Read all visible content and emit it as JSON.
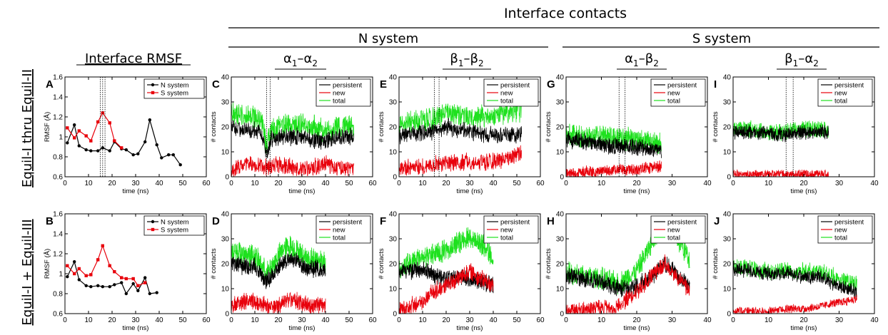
{
  "header": {
    "top_title": "Interface contacts",
    "n_system": "N system",
    "s_system": "S system",
    "rmsf_title": "Interface RMSF",
    "col_c": {
      "a": "α",
      "s1": "1",
      "dash": "–",
      "b": "α",
      "s2": "2"
    },
    "col_e": {
      "a": "β",
      "s1": "1",
      "dash": "–",
      "b": "β",
      "s2": "2"
    },
    "col_g": {
      "a": "α",
      "s1": "1",
      "dash": "–",
      "b": "β",
      "s2": "2"
    },
    "col_i": {
      "a": "β",
      "s1": "1",
      "dash": "–",
      "b": "α",
      "s2": "2"
    },
    "row1": "Equil-I thru Equil-II",
    "row2": "Equil-I + Equil-III"
  },
  "colors": {
    "black": "#000000",
    "red": "#e8000b",
    "green": "#1ee11e"
  },
  "chart_data": [
    {
      "id": "A",
      "type": "line",
      "xlabel": "time (ns)",
      "ylabel": "RMSF (Å)",
      "xlim": [
        0,
        60
      ],
      "ylim": [
        0.6,
        1.6
      ],
      "xticks": [
        0,
        10,
        20,
        30,
        40,
        50,
        60
      ],
      "yticks": [
        0.6,
        0.8,
        1.0,
        1.2,
        1.4,
        1.6
      ],
      "vlines": [
        15,
        16,
        17
      ],
      "legend": "top-right",
      "series": [
        {
          "name": "N system",
          "color": "#000000",
          "x": [
            1,
            4,
            6,
            9,
            11,
            14,
            16,
            19,
            21,
            24,
            26,
            29,
            31,
            34,
            36,
            39,
            41,
            44,
            46,
            49
          ],
          "y": [
            0.94,
            1.12,
            0.91,
            0.87,
            0.86,
            0.86,
            0.89,
            0.86,
            0.95,
            0.88,
            0.87,
            0.82,
            0.83,
            0.95,
            1.17,
            0.92,
            0.79,
            0.82,
            0.82,
            0.72
          ]
        },
        {
          "name": "S system",
          "color": "#e8000b",
          "x": [
            1,
            4,
            6,
            9,
            11,
            14,
            16,
            19,
            21,
            24
          ],
          "y": [
            1.09,
            0.99,
            1.06,
            1.01,
            0.96,
            1.15,
            1.24,
            1.14,
            0.96,
            0.89
          ]
        }
      ]
    },
    {
      "id": "B",
      "type": "line",
      "xlabel": "time (ns)",
      "ylabel": "RMSF (Å)",
      "xlim": [
        0,
        60
      ],
      "ylim": [
        0.6,
        1.6
      ],
      "xticks": [
        0,
        10,
        20,
        30,
        40,
        50,
        60
      ],
      "yticks": [
        0.6,
        0.8,
        1.0,
        1.2,
        1.4,
        1.6
      ],
      "vlines": [],
      "legend": "top-right",
      "series": [
        {
          "name": "N system",
          "color": "#000000",
          "x": [
            1,
            4,
            6,
            9,
            11,
            14,
            16,
            19,
            21,
            24,
            26,
            29,
            31,
            34,
            36,
            39
          ],
          "y": [
            0.97,
            1.12,
            0.94,
            0.88,
            0.87,
            0.88,
            0.87,
            0.87,
            0.89,
            0.91,
            0.8,
            0.9,
            0.83,
            0.96,
            0.8,
            0.81
          ]
        },
        {
          "name": "S system",
          "color": "#e8000b",
          "x": [
            1,
            4,
            6,
            9,
            11,
            14,
            16,
            19,
            21,
            24,
            26,
            29,
            31,
            34
          ],
          "y": [
            1.08,
            1.0,
            1.05,
            0.98,
            0.99,
            1.14,
            1.28,
            1.08,
            1.02,
            0.96,
            0.95,
            0.95,
            0.88,
            0.91
          ]
        }
      ]
    },
    {
      "id": "C",
      "type": "line",
      "xlabel": "time (ns)",
      "ylabel": "# contacts",
      "xlim": [
        0,
        60
      ],
      "ylim": [
        0,
        40
      ],
      "xticks": [
        0,
        10,
        20,
        30,
        40,
        50,
        60
      ],
      "yticks": [
        0,
        10,
        20,
        30,
        40
      ],
      "vlines": [
        15,
        16.5
      ],
      "legend": "top-right",
      "t_end": 52,
      "series": [
        {
          "name": "persistent",
          "color": "#000000",
          "x": [
            0,
            5,
            10,
            13,
            15,
            17,
            20,
            25,
            30,
            35,
            40,
            45,
            50,
            52
          ],
          "y": [
            20,
            19,
            19,
            17,
            9,
            15,
            16,
            16,
            16,
            15,
            14,
            16,
            16,
            16
          ],
          "noise": 3
        },
        {
          "name": "new",
          "color": "#e8000b",
          "x": [
            0,
            5,
            10,
            15,
            20,
            25,
            30,
            35,
            40,
            45,
            50,
            52
          ],
          "y": [
            2,
            5,
            5,
            4,
            5,
            4,
            3,
            4,
            5,
            4,
            4,
            3
          ],
          "noise": 3
        },
        {
          "name": "total",
          "color": "#1ee11e",
          "x": [
            0,
            5,
            10,
            13,
            15,
            17,
            20,
            25,
            30,
            35,
            40,
            45,
            50,
            52
          ],
          "y": [
            25,
            25,
            24,
            22,
            12,
            18,
            20,
            21,
            21,
            20,
            18,
            20,
            20,
            19
          ],
          "noise": 4
        }
      ]
    },
    {
      "id": "D",
      "type": "line",
      "xlabel": "time (ns)",
      "ylabel": "# contacts",
      "xlim": [
        0,
        60
      ],
      "ylim": [
        0,
        40
      ],
      "xticks": [
        0,
        10,
        20,
        30,
        40,
        50,
        60
      ],
      "yticks": [
        0,
        10,
        20,
        30,
        40
      ],
      "vlines": [],
      "legend": "top-right",
      "t_end": 40,
      "series": [
        {
          "name": "persistent",
          "color": "#000000",
          "x": [
            0,
            5,
            10,
            13,
            15,
            18,
            22,
            25,
            28,
            32,
            36,
            40
          ],
          "y": [
            20,
            19,
            19,
            15,
            13,
            16,
            21,
            22,
            21,
            18,
            18,
            17
          ],
          "noise": 3
        },
        {
          "name": "new",
          "color": "#e8000b",
          "x": [
            0,
            5,
            10,
            15,
            20,
            25,
            30,
            35,
            40
          ],
          "y": [
            3,
            5,
            5,
            3,
            3,
            6,
            4,
            3,
            3
          ],
          "noise": 3
        },
        {
          "name": "total",
          "color": "#1ee11e",
          "x": [
            0,
            5,
            10,
            13,
            15,
            18,
            22,
            25,
            28,
            32,
            36,
            40
          ],
          "y": [
            25,
            24,
            23,
            19,
            16,
            20,
            26,
            27,
            25,
            22,
            22,
            21
          ],
          "noise": 4
        }
      ]
    },
    {
      "id": "E",
      "type": "line",
      "xlabel": "time (ns)",
      "ylabel": "# contacts",
      "xlim": [
        0,
        60
      ],
      "ylim": [
        0,
        40
      ],
      "xticks": [
        0,
        10,
        20,
        30,
        40,
        50,
        60
      ],
      "yticks": [
        0,
        10,
        20,
        30,
        40
      ],
      "vlines": [
        15,
        17
      ],
      "legend": "top-right",
      "t_end": 52,
      "series": [
        {
          "name": "persistent",
          "color": "#000000",
          "x": [
            0,
            5,
            10,
            15,
            20,
            25,
            30,
            35,
            40,
            45,
            50,
            52
          ],
          "y": [
            16,
            17,
            18,
            18,
            20,
            19,
            18,
            17,
            17,
            17,
            17,
            17
          ],
          "noise": 3
        },
        {
          "name": "new",
          "color": "#e8000b",
          "x": [
            0,
            5,
            10,
            15,
            20,
            25,
            30,
            35,
            40,
            45,
            50,
            52
          ],
          "y": [
            3,
            4,
            4,
            5,
            5,
            6,
            6,
            6,
            6,
            7,
            9,
            10
          ],
          "noise": 3
        },
        {
          "name": "total",
          "color": "#1ee11e",
          "x": [
            0,
            5,
            10,
            15,
            20,
            25,
            30,
            35,
            40,
            45,
            50,
            52
          ],
          "y": [
            20,
            22,
            23,
            23,
            26,
            25,
            24,
            24,
            24,
            25,
            26,
            27
          ],
          "noise": 4
        }
      ]
    },
    {
      "id": "F",
      "type": "line",
      "xlabel": "time (ns)",
      "ylabel": "# contacts",
      "xlim": [
        0,
        60
      ],
      "ylim": [
        0,
        40
      ],
      "xticks": [
        0,
        10,
        20,
        30,
        40,
        50,
        60
      ],
      "yticks": [
        0,
        10,
        20,
        30,
        40
      ],
      "vlines": [],
      "legend": "top-right",
      "t_end": 40,
      "series": [
        {
          "name": "persistent",
          "color": "#000000",
          "x": [
            0,
            5,
            10,
            15,
            20,
            25,
            30,
            35,
            40
          ],
          "y": [
            17,
            17,
            18,
            15,
            14,
            15,
            14,
            13,
            11
          ],
          "noise": 3
        },
        {
          "name": "new",
          "color": "#e8000b",
          "x": [
            0,
            5,
            10,
            15,
            20,
            25,
            30,
            35,
            40
          ],
          "y": [
            1,
            3,
            5,
            9,
            11,
            14,
            17,
            14,
            11
          ],
          "noise": 3
        },
        {
          "name": "total",
          "color": "#1ee11e",
          "x": [
            0,
            5,
            10,
            15,
            20,
            25,
            30,
            35,
            40
          ],
          "y": [
            18,
            20,
            22,
            24,
            25,
            28,
            31,
            28,
            22
          ],
          "noise": 4
        }
      ]
    },
    {
      "id": "G",
      "type": "line",
      "xlabel": "time (ns)",
      "ylabel": "# contacts",
      "xlim": [
        0,
        40
      ],
      "ylim": [
        0,
        40
      ],
      "xticks": [
        0,
        10,
        20,
        30,
        40
      ],
      "yticks": [
        0,
        10,
        20,
        30,
        40
      ],
      "vlines": [
        15,
        16.7
      ],
      "legend": "top-right",
      "t_end": 27,
      "series": [
        {
          "name": "persistent",
          "color": "#000000",
          "x": [
            0,
            5,
            10,
            15,
            20,
            25,
            27
          ],
          "y": [
            15,
            14,
            13,
            12,
            12,
            11,
            10
          ],
          "noise": 3
        },
        {
          "name": "new",
          "color": "#e8000b",
          "x": [
            0,
            5,
            10,
            15,
            20,
            25,
            27
          ],
          "y": [
            1,
            2,
            2,
            3,
            3,
            4,
            4
          ],
          "noise": 2
        },
        {
          "name": "total",
          "color": "#1ee11e",
          "x": [
            0,
            5,
            10,
            15,
            20,
            25,
            27
          ],
          "y": [
            17,
            16,
            16,
            15,
            15,
            14,
            13
          ],
          "noise": 4
        }
      ]
    },
    {
      "id": "H",
      "type": "line",
      "xlabel": "time (ns)",
      "ylabel": "# contacts",
      "xlim": [
        0,
        40
      ],
      "ylim": [
        0,
        40
      ],
      "xticks": [
        0,
        10,
        20,
        30,
        40
      ],
      "yticks": [
        0,
        10,
        20,
        30,
        40
      ],
      "vlines": [],
      "legend": "top-right",
      "t_end": 35,
      "series": [
        {
          "name": "persistent",
          "color": "#000000",
          "x": [
            0,
            5,
            10,
            15,
            20,
            25,
            28,
            32,
            35
          ],
          "y": [
            15,
            14,
            13,
            10,
            11,
            16,
            20,
            15,
            11
          ],
          "noise": 3
        },
        {
          "name": "new",
          "color": "#e8000b",
          "x": [
            0,
            5,
            10,
            15,
            20,
            25,
            28,
            32,
            35
          ],
          "y": [
            1,
            2,
            2,
            3,
            9,
            16,
            20,
            14,
            9
          ],
          "noise": 3
        },
        {
          "name": "total",
          "color": "#1ee11e",
          "x": [
            0,
            5,
            10,
            15,
            20,
            25,
            28,
            32,
            35
          ],
          "y": [
            16,
            15,
            14,
            12,
            17,
            30,
            36,
            29,
            22
          ],
          "noise": 4
        }
      ]
    },
    {
      "id": "I",
      "type": "line",
      "xlabel": "time (ns)",
      "ylabel": "# contacts",
      "xlim": [
        0,
        40
      ],
      "ylim": [
        0,
        40
      ],
      "xticks": [
        0,
        10,
        20,
        30,
        40
      ],
      "yticks": [
        0,
        10,
        20,
        30,
        40
      ],
      "vlines": [
        15,
        17
      ],
      "legend": "top-right",
      "t_end": 27,
      "series": [
        {
          "name": "persistent",
          "color": "#000000",
          "x": [
            0,
            5,
            10,
            15,
            20,
            25,
            27
          ],
          "y": [
            18,
            18,
            17,
            17,
            18,
            18,
            18
          ],
          "noise": 2.5
        },
        {
          "name": "new",
          "color": "#e8000b",
          "x": [
            0,
            5,
            10,
            15,
            20,
            25,
            27
          ],
          "y": [
            1,
            1,
            1,
            1,
            1,
            1,
            1
          ],
          "noise": 1.5
        },
        {
          "name": "total",
          "color": "#1ee11e",
          "x": [
            0,
            5,
            10,
            15,
            20,
            25,
            27
          ],
          "y": [
            19,
            19,
            18,
            18,
            19,
            19,
            19
          ],
          "noise": 3
        }
      ]
    },
    {
      "id": "J",
      "type": "line",
      "xlabel": "time (ns)",
      "ylabel": "# contacts",
      "xlim": [
        0,
        40
      ],
      "ylim": [
        0,
        40
      ],
      "xticks": [
        0,
        10,
        20,
        30,
        40
      ],
      "yticks": [
        0,
        10,
        20,
        30,
        40
      ],
      "vlines": [],
      "legend": "top-right",
      "t_end": 35,
      "series": [
        {
          "name": "persistent",
          "color": "#000000",
          "x": [
            0,
            5,
            10,
            15,
            20,
            25,
            28,
            32,
            35
          ],
          "y": [
            18,
            17,
            16,
            16,
            15,
            15,
            12,
            10,
            9
          ],
          "noise": 2.5
        },
        {
          "name": "new",
          "color": "#e8000b",
          "x": [
            0,
            5,
            10,
            15,
            20,
            25,
            28,
            32,
            35
          ],
          "y": [
            1,
            1,
            1,
            2,
            2,
            3,
            4,
            5,
            6
          ],
          "noise": 1.5
        },
        {
          "name": "total",
          "color": "#1ee11e",
          "x": [
            0,
            5,
            10,
            15,
            20,
            25,
            28,
            32,
            35
          ],
          "y": [
            19,
            18,
            17,
            17,
            17,
            17,
            15,
            13,
            12
          ],
          "noise": 3
        }
      ]
    }
  ]
}
